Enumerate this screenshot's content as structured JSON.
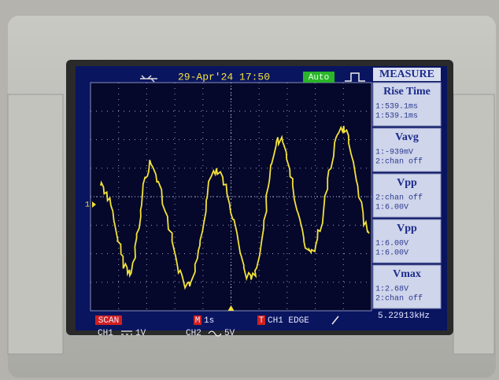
{
  "header": {
    "date_time": "29-Apr'24 17:50",
    "trigger_mode": "Auto",
    "menu_title": "MEASURE"
  },
  "measurements": [
    {
      "title": "Rise Time",
      "lines": [
        "1:539.1ms",
        "1:539.1ms"
      ]
    },
    {
      "title": "Vavg",
      "lines": [
        "1:-939mV",
        "2:chan off"
      ]
    },
    {
      "title": "Vpp",
      "lines": [
        "2:chan off",
        "1:6.00V"
      ]
    },
    {
      "title": "Vpp",
      "lines": [
        "1:6.00V",
        "1:6.00V"
      ]
    },
    {
      "title": "Vmax",
      "lines": [
        "1:2.68V",
        "2:chan off"
      ]
    }
  ],
  "trace": {
    "channel_marker": "1"
  },
  "footer": {
    "mode": "SCAN",
    "timebase_marker": "M",
    "timebase": "1s",
    "trigger_marker": "T",
    "trigger": "CH1 EDGE",
    "frequency": "5.22913kHz",
    "ch1": "CH1",
    "ch1_scale": "1V",
    "ch2": "CH2",
    "ch2_scale": "5V"
  }
}
